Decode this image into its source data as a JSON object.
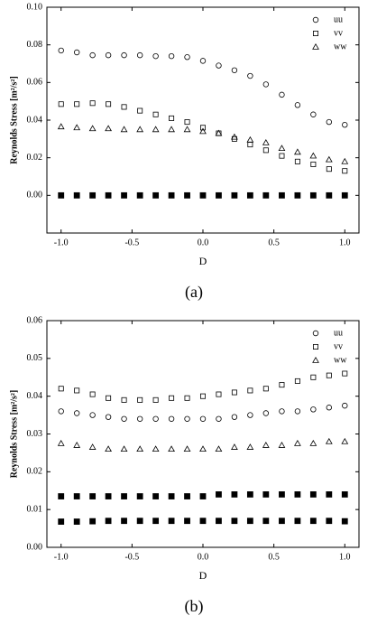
{
  "chart_data": [
    {
      "type": "scatter",
      "x": [
        -1.0,
        -0.889,
        -0.778,
        -0.667,
        -0.556,
        -0.444,
        -0.333,
        -0.222,
        -0.111,
        0.0,
        0.111,
        0.222,
        0.333,
        0.444,
        0.556,
        0.667,
        0.778,
        0.889,
        1.0
      ],
      "series": [
        {
          "name": "uu",
          "marker": "circle",
          "color": "#000000",
          "values": [
            0.077,
            0.076,
            0.0745,
            0.0745,
            0.0745,
            0.0745,
            0.074,
            0.074,
            0.0735,
            0.0715,
            0.069,
            0.0665,
            0.0635,
            0.059,
            0.0535,
            0.048,
            0.043,
            0.039,
            0.0375
          ]
        },
        {
          "name": "vv",
          "marker": "square",
          "color": "#000000",
          "values": [
            0.0485,
            0.0485,
            0.049,
            0.0485,
            0.047,
            0.045,
            0.043,
            0.041,
            0.039,
            0.036,
            0.033,
            0.03,
            0.027,
            0.024,
            0.021,
            0.018,
            0.0165,
            0.014,
            0.013
          ]
        },
        {
          "name": "ww",
          "marker": "triangle",
          "color": "#000000",
          "values": [
            0.0365,
            0.036,
            0.0355,
            0.0355,
            0.035,
            0.035,
            0.035,
            0.035,
            0.035,
            0.034,
            0.033,
            0.031,
            0.0295,
            0.028,
            0.025,
            0.023,
            0.021,
            0.019,
            0.018
          ]
        },
        {
          "marker": "filled-square",
          "color": "#000000",
          "values": [
            0,
            0,
            0,
            0,
            0,
            0,
            0,
            0,
            0,
            0,
            0,
            0,
            0,
            0,
            0,
            0,
            0,
            0,
            0
          ]
        }
      ],
      "xlim": [
        -1.1,
        1.1
      ],
      "ylim": [
        -0.02,
        0.1
      ],
      "xticks": [
        {
          "value": -1,
          "label": "-1.0"
        },
        {
          "value": -0.5,
          "label": "-0.5"
        },
        {
          "value": 0,
          "label": "0.0"
        },
        {
          "value": 0.5,
          "label": "0.5"
        },
        {
          "value": 1,
          "label": "1.0"
        }
      ],
      "yticks": [
        {
          "value": 0,
          "label": "0.00"
        },
        {
          "value": 0.02,
          "label": "0.02"
        },
        {
          "value": 0.04,
          "label": "0.04"
        },
        {
          "value": 0.06,
          "label": "0.06"
        },
        {
          "value": 0.08,
          "label": "0.08"
        },
        {
          "value": 0.1,
          "label": "0.10"
        }
      ],
      "xlabel": "D",
      "ylabel": "Reynolds Stress [m²/s²]",
      "caption": "(a)"
    },
    {
      "type": "scatter",
      "x": [
        -1.0,
        -0.889,
        -0.778,
        -0.667,
        -0.556,
        -0.444,
        -0.333,
        -0.222,
        -0.111,
        0.0,
        0.111,
        0.222,
        0.333,
        0.444,
        0.556,
        0.667,
        0.778,
        0.889,
        1.0
      ],
      "series": [
        {
          "name": "uu",
          "marker": "circle",
          "color": "#000000",
          "values": [
            0.036,
            0.0355,
            0.035,
            0.0345,
            0.034,
            0.034,
            0.034,
            0.034,
            0.034,
            0.034,
            0.034,
            0.0345,
            0.035,
            0.0355,
            0.036,
            0.036,
            0.0365,
            0.037,
            0.0375
          ]
        },
        {
          "name": "vv",
          "marker": "square",
          "color": "#000000",
          "values": [
            0.042,
            0.0415,
            0.0405,
            0.0395,
            0.039,
            0.039,
            0.039,
            0.0395,
            0.0395,
            0.04,
            0.0405,
            0.041,
            0.0415,
            0.042,
            0.043,
            0.044,
            0.045,
            0.0455,
            0.046
          ]
        },
        {
          "name": "ww",
          "marker": "triangle",
          "color": "#000000",
          "values": [
            0.0275,
            0.027,
            0.0265,
            0.026,
            0.026,
            0.026,
            0.026,
            0.026,
            0.026,
            0.026,
            0.026,
            0.0265,
            0.0265,
            0.027,
            0.027,
            0.0275,
            0.0275,
            0.028,
            0.028
          ]
        },
        {
          "marker": "filled-square",
          "color": "#000000",
          "values": [
            0.0135,
            0.0135,
            0.0135,
            0.0135,
            0.0135,
            0.0135,
            0.0135,
            0.0135,
            0.0135,
            0.0135,
            0.014,
            0.014,
            0.014,
            0.014,
            0.014,
            0.014,
            0.014,
            0.014,
            0.014
          ]
        },
        {
          "marker": "filled-square",
          "color": "#000000",
          "values": [
            0.0068,
            0.0068,
            0.0069,
            0.007,
            0.007,
            0.007,
            0.007,
            0.007,
            0.007,
            0.007,
            0.007,
            0.007,
            0.007,
            0.007,
            0.007,
            0.007,
            0.007,
            0.007,
            0.0069
          ]
        }
      ],
      "xlim": [
        -1.1,
        1.1
      ],
      "ylim": [
        0,
        0.06
      ],
      "xticks": [
        {
          "value": -1,
          "label": "-1.0"
        },
        {
          "value": -0.5,
          "label": "-0.5"
        },
        {
          "value": 0,
          "label": "0.0"
        },
        {
          "value": 0.5,
          "label": "0.5"
        },
        {
          "value": 1,
          "label": "1.0"
        }
      ],
      "yticks": [
        {
          "value": 0,
          "label": "0.00"
        },
        {
          "value": 0.01,
          "label": "0.01"
        },
        {
          "value": 0.02,
          "label": "0.02"
        },
        {
          "value": 0.03,
          "label": "0.03"
        },
        {
          "value": 0.04,
          "label": "0.04"
        },
        {
          "value": 0.05,
          "label": "0.05"
        },
        {
          "value": 0.06,
          "label": "0.06"
        }
      ],
      "xlabel": "D",
      "ylabel": "Reynolds Stress [m²/s²]",
      "caption": "(b)"
    }
  ]
}
